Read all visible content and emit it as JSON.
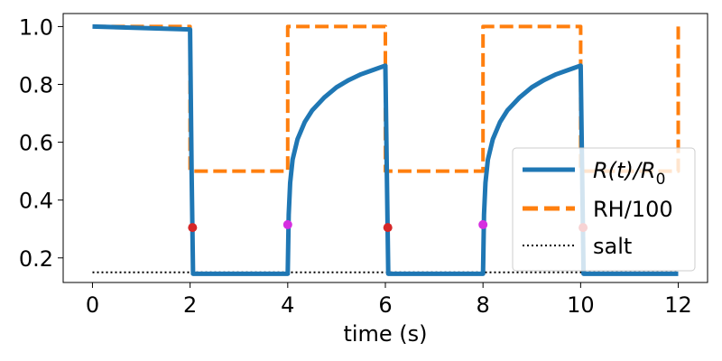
{
  "chart_data": {
    "type": "line",
    "xlabel": "time (s)",
    "ylabel": "",
    "xlim": [
      -0.6,
      12.6
    ],
    "ylim": [
      0.115,
      1.045
    ],
    "x_ticks": [
      0,
      2,
      4,
      6,
      8,
      10,
      12
    ],
    "x_tick_labels": [
      "0",
      "2",
      "4",
      "6",
      "8",
      "10",
      "12"
    ],
    "y_ticks": [
      0.2,
      0.4,
      0.6,
      0.8,
      1.0
    ],
    "y_tick_labels": [
      "0.2",
      "0.4",
      "0.6",
      "0.8",
      "1.0"
    ],
    "grid": false,
    "legend_position": "right",
    "series": [
      {
        "name": "R(t)/R_0",
        "legend_main": "R(t)/R",
        "legend_sub": "0",
        "color": "#1f77b4",
        "style": "solid",
        "x": [
          0,
          2.0,
          2.03,
          2.06,
          4.0,
          4.02,
          4.05,
          4.1,
          4.2,
          4.35,
          4.5,
          4.75,
          5.0,
          5.25,
          5.5,
          5.75,
          6.0,
          6.03,
          6.06,
          8.0,
          8.02,
          8.05,
          8.1,
          8.2,
          8.35,
          8.5,
          8.75,
          9.0,
          9.25,
          9.5,
          9.75,
          10.0,
          10.03,
          10.06,
          12.0
        ],
        "y": [
          1.0,
          0.99,
          0.5,
          0.145,
          0.145,
          0.35,
          0.46,
          0.54,
          0.61,
          0.67,
          0.71,
          0.755,
          0.79,
          0.815,
          0.835,
          0.85,
          0.865,
          0.5,
          0.145,
          0.145,
          0.35,
          0.46,
          0.54,
          0.61,
          0.67,
          0.71,
          0.755,
          0.79,
          0.815,
          0.835,
          0.85,
          0.865,
          0.5,
          0.145,
          0.145
        ]
      },
      {
        "name": "RH/100",
        "color": "#ff7f0e",
        "style": "dashed",
        "x": [
          0,
          2.0,
          2.0,
          4.0,
          4.0,
          6.0,
          6.0,
          8.0,
          8.0,
          10.0,
          10.0,
          12.0,
          12.0
        ],
        "y": [
          1.0,
          1.0,
          0.5,
          0.5,
          1.0,
          1.0,
          0.5,
          0.5,
          1.0,
          1.0,
          0.5,
          0.5,
          1.0
        ]
      },
      {
        "name": "salt",
        "color": "#000000",
        "style": "dotted",
        "x": [
          0,
          12
        ],
        "y": [
          0.15,
          0.15
        ]
      }
    ],
    "markers": [
      {
        "x": 2.05,
        "y": 0.305,
        "color": "#d62728"
      },
      {
        "x": 4.0,
        "y": 0.315,
        "color": "#d62ee0"
      },
      {
        "x": 6.05,
        "y": 0.305,
        "color": "#d62728"
      },
      {
        "x": 8.0,
        "y": 0.315,
        "color": "#d62ee0"
      },
      {
        "x": 10.05,
        "y": 0.305,
        "color": "#d62728"
      }
    ]
  }
}
